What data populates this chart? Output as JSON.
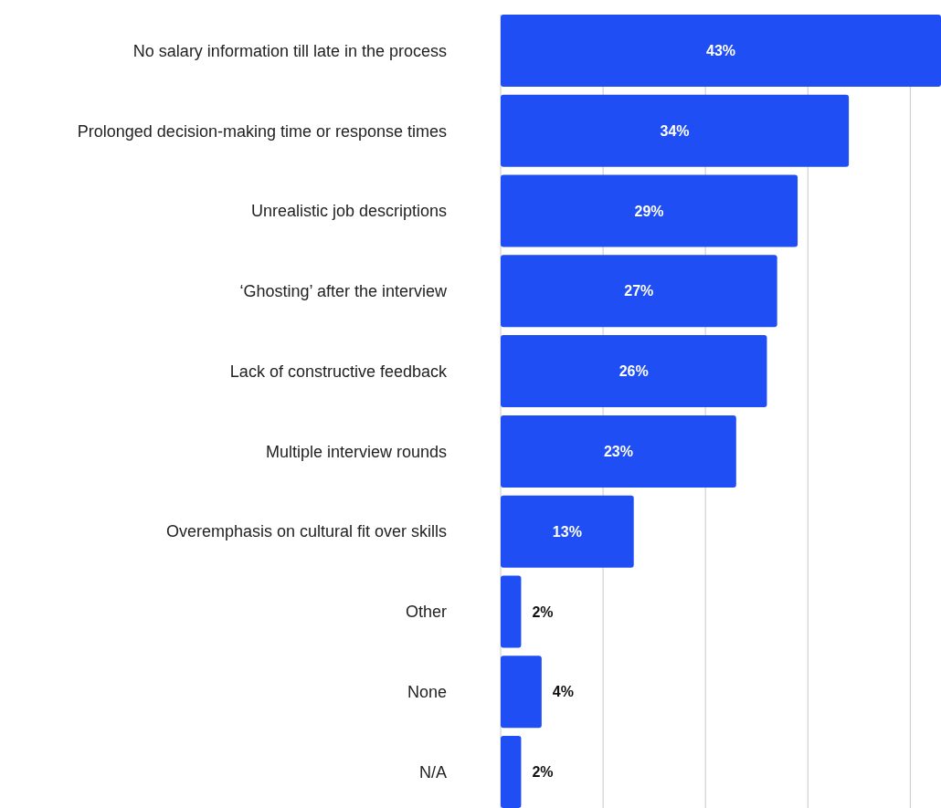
{
  "chart_data": {
    "type": "bar",
    "orientation": "horizontal",
    "categories": [
      "No salary information till late in the process",
      "Prolonged decision-making time or response times",
      "Unrealistic job descriptions",
      "‘Ghosting’ after the interview",
      "Lack of constructive feedback",
      "Multiple interview rounds",
      "Overemphasis on cultural fit over skills",
      "Other",
      "None",
      "N/A"
    ],
    "values": [
      43,
      34,
      29,
      27,
      26,
      23,
      13,
      2,
      4,
      2
    ],
    "value_labels": [
      "43%",
      "34%",
      "29%",
      "27%",
      "26%",
      "23%",
      "13%",
      "2%",
      "4%",
      "2%"
    ],
    "color": "#1f4ef5",
    "xlim": [
      0,
      43
    ],
    "xticks": [
      {
        "value": 0,
        "label": null
      },
      {
        "value": 10,
        "label": null
      },
      {
        "value": 20,
        "label": null
      },
      {
        "value": 30,
        "label": null
      },
      {
        "value": 40,
        "label": null
      }
    ],
    "grid": "x",
    "tick_labels": "y"
  }
}
